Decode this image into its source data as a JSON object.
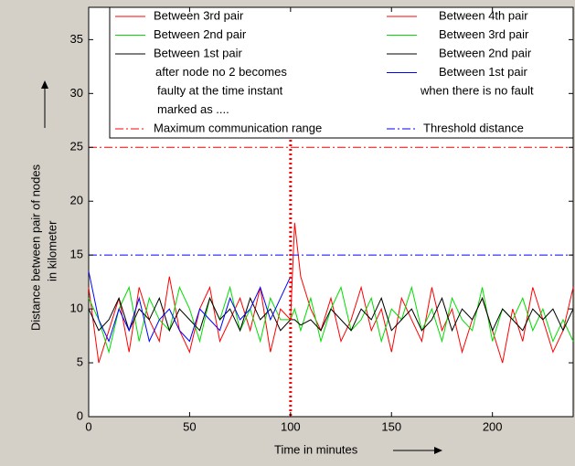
{
  "chart_data": {
    "type": "line",
    "xlabel": "Time in minutes",
    "ylabel": [
      "Distance between pair of nodes",
      "in kilometer"
    ],
    "xlim": [
      0,
      240
    ],
    "xticks": [
      0,
      50,
      100,
      150,
      200
    ],
    "ylim": [
      0,
      38
    ],
    "yticks": [
      0,
      5,
      10,
      15,
      20,
      25,
      30,
      35
    ],
    "x": [
      0,
      5,
      10,
      15,
      20,
      25,
      30,
      35,
      40,
      45,
      50,
      55,
      60,
      65,
      70,
      75,
      80,
      85,
      90,
      95,
      100,
      102,
      105,
      110,
      115,
      120,
      125,
      130,
      135,
      140,
      145,
      150,
      155,
      160,
      165,
      170,
      175,
      180,
      185,
      190,
      195,
      200,
      205,
      210,
      215,
      220,
      225,
      230,
      235,
      240
    ],
    "series": [
      {
        "name": "Between 3rd pair",
        "color": "#ff0000",
        "legend": "left",
        "values": [
          null,
          null,
          null,
          null,
          null,
          null,
          null,
          null,
          null,
          null,
          null,
          null,
          null,
          null,
          null,
          null,
          null,
          null,
          null,
          null,
          9,
          18,
          13,
          10,
          8,
          11,
          7,
          9,
          12,
          8,
          10,
          6,
          11,
          9,
          7,
          12,
          8,
          10,
          6,
          9,
          11,
          8,
          5,
          10,
          7,
          12,
          9,
          6,
          8,
          12
        ]
      },
      {
        "name": "Between 2nd pair",
        "color": "#00dd00",
        "legend": "left",
        "values": [
          null,
          null,
          null,
          null,
          null,
          null,
          null,
          null,
          null,
          null,
          null,
          null,
          null,
          null,
          null,
          null,
          null,
          null,
          null,
          null,
          9,
          10,
          8,
          11,
          7,
          10,
          12,
          8,
          9,
          11,
          7,
          10,
          9,
          12,
          8,
          10,
          7,
          11,
          9,
          8,
          12,
          7,
          10,
          9,
          11,
          8,
          10,
          7,
          9,
          7
        ]
      },
      {
        "name": "Between 1st pair",
        "color": "#000000",
        "legend": "left",
        "values": [
          null,
          null,
          null,
          null,
          null,
          null,
          null,
          null,
          null,
          null,
          null,
          null,
          null,
          null,
          null,
          null,
          null,
          null,
          null,
          null,
          9,
          9,
          8.5,
          9,
          8,
          10,
          9,
          8,
          10,
          9,
          11,
          8,
          9,
          10,
          8,
          9,
          11,
          8,
          10,
          9,
          11,
          8,
          10,
          9,
          8,
          10,
          9,
          10,
          8,
          10
        ]
      },
      {
        "name": "Between 4th pair",
        "color": "#ff0000",
        "legend": "right",
        "values": [
          12,
          5,
          8,
          11,
          6,
          12,
          9,
          7,
          13,
          8,
          6,
          10,
          12,
          7,
          9,
          11,
          8,
          12,
          6,
          10,
          9,
          null,
          null,
          null,
          null,
          null,
          null,
          null,
          null,
          null,
          null,
          null,
          null,
          null,
          null,
          null,
          null,
          null,
          null,
          null,
          null,
          null,
          null,
          null,
          null,
          null,
          null,
          null,
          null,
          null
        ]
      },
      {
        "name": "Between 3rd pair",
        "color": "#00dd00",
        "legend": "right",
        "values": [
          11,
          9,
          6,
          10,
          12,
          7,
          11,
          9,
          8,
          12,
          10,
          7,
          11,
          9,
          12,
          8,
          10,
          7,
          11,
          9,
          9,
          null,
          null,
          null,
          null,
          null,
          null,
          null,
          null,
          null,
          null,
          null,
          null,
          null,
          null,
          null,
          null,
          null,
          null,
          null,
          null,
          null,
          null,
          null,
          null,
          null,
          null,
          null,
          null,
          null
        ]
      },
      {
        "name": "Between 2nd pair",
        "color": "#000000",
        "legend": "right",
        "values": [
          10,
          8,
          9,
          11,
          8,
          10,
          9,
          11,
          8,
          10,
          9,
          8,
          11,
          9,
          10,
          8,
          11,
          9,
          10,
          8,
          9,
          null,
          null,
          null,
          null,
          null,
          null,
          null,
          null,
          null,
          null,
          null,
          null,
          null,
          null,
          null,
          null,
          null,
          null,
          null,
          null,
          null,
          null,
          null,
          null,
          null,
          null,
          null,
          null,
          null
        ]
      },
      {
        "name": "Between 1st pair",
        "color": "#0000ff",
        "legend": "right",
        "values": [
          13.5,
          9,
          7,
          10,
          8,
          11,
          7,
          9,
          10,
          8,
          7,
          10,
          9,
          8,
          11,
          9,
          10,
          12,
          9,
          11,
          13,
          null,
          null,
          null,
          null,
          null,
          null,
          null,
          null,
          null,
          null,
          null,
          null,
          null,
          null,
          null,
          null,
          null,
          null,
          null,
          null,
          null,
          null,
          null,
          null,
          null,
          null,
          null,
          null,
          null
        ]
      }
    ],
    "legend_notes_left": [
      "after node no 2 becomes",
      "faulty at the time instant",
      "marked as ...."
    ],
    "legend_notes_right": [
      "when there is no fault"
    ],
    "reference_lines": [
      {
        "name": "Maximum communication range",
        "value": 25,
        "color": "#ff0000",
        "style": "dashdot"
      },
      {
        "name": "Threshold distance",
        "value": 15,
        "color": "#0000ff",
        "style": "dashdot"
      }
    ],
    "fault_line": {
      "x": 100,
      "color": "#ff0000",
      "style": "dotted"
    }
  }
}
